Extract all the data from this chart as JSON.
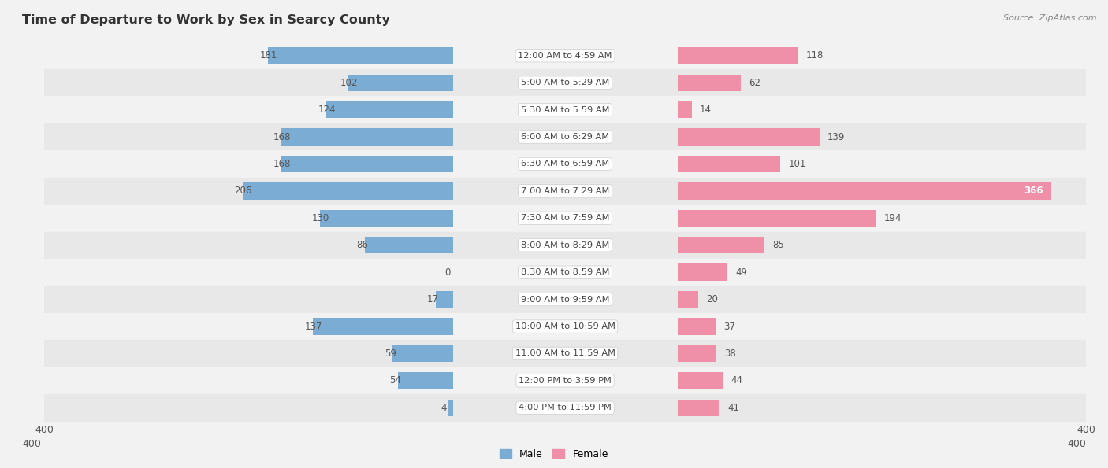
{
  "title": "Time of Departure to Work by Sex in Searcy County",
  "source": "Source: ZipAtlas.com",
  "categories": [
    "12:00 AM to 4:59 AM",
    "5:00 AM to 5:29 AM",
    "5:30 AM to 5:59 AM",
    "6:00 AM to 6:29 AM",
    "6:30 AM to 6:59 AM",
    "7:00 AM to 7:29 AM",
    "7:30 AM to 7:59 AM",
    "8:00 AM to 8:29 AM",
    "8:30 AM to 8:59 AM",
    "9:00 AM to 9:59 AM",
    "10:00 AM to 10:59 AM",
    "11:00 AM to 11:59 AM",
    "12:00 PM to 3:59 PM",
    "4:00 PM to 11:59 PM"
  ],
  "male_values": [
    181,
    102,
    124,
    168,
    168,
    206,
    130,
    86,
    0,
    17,
    137,
    59,
    54,
    4
  ],
  "female_values": [
    118,
    62,
    14,
    139,
    101,
    366,
    194,
    85,
    49,
    20,
    37,
    38,
    44,
    41
  ],
  "male_color": "#7badd4",
  "female_color": "#f090a8",
  "male_label": "Male",
  "female_label": "Female",
  "axis_limit": 400,
  "row_bg_light": "#f2f2f2",
  "row_bg_dark": "#e8e8e8",
  "label_fontsize": 8.5,
  "title_fontsize": 11.5,
  "tick_fontsize": 9,
  "source_fontsize": 8
}
